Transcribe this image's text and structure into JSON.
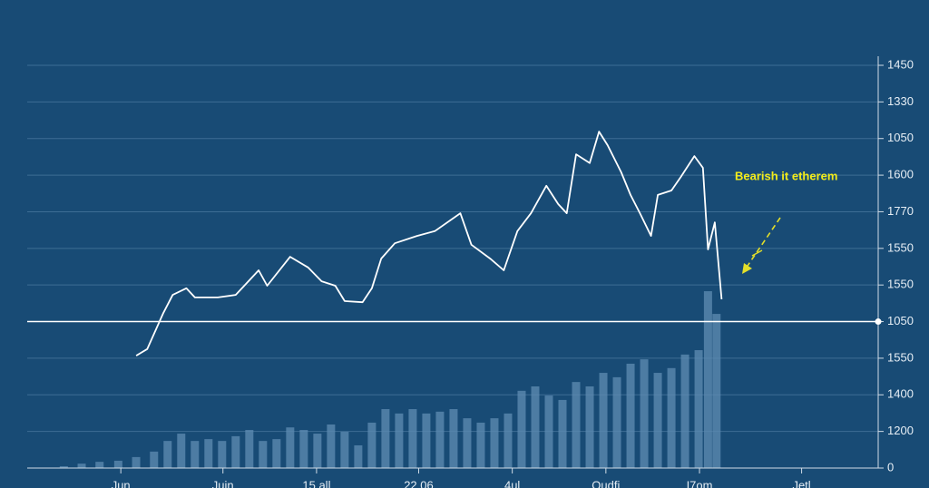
{
  "chart_data": {
    "type": "line",
    "annotation": "Bearish it etherem",
    "xlim": [
      0,
      100
    ],
    "xticks": [
      {
        "value": 11,
        "label": "Jun"
      },
      {
        "value": 23,
        "label": "Jujn"
      },
      {
        "value": 34,
        "label": "15 all"
      },
      {
        "value": 46,
        "label": "22.06"
      },
      {
        "value": 57,
        "label": "4ul"
      },
      {
        "value": 68,
        "label": "Oudfi"
      },
      {
        "value": 79,
        "label": "I7om"
      },
      {
        "value": 91,
        "label": "Jetl"
      }
    ],
    "ylim": [
      0,
      11
    ],
    "yticks": [
      {
        "value": 11,
        "label": "1450"
      },
      {
        "value": 10,
        "label": "1330"
      },
      {
        "value": 9,
        "label": "1050"
      },
      {
        "value": 8,
        "label": "1600"
      },
      {
        "value": 7,
        "label": "1770"
      },
      {
        "value": 6,
        "label": "1550"
      },
      {
        "value": 5,
        "label": "1550"
      },
      {
        "value": 4,
        "label": "1050"
      },
      {
        "value": 3,
        "label": "1550"
      },
      {
        "value": 2,
        "label": "1400"
      },
      {
        "value": 1,
        "label": "1200"
      },
      {
        "value": 0,
        "label": "0"
      }
    ],
    "grid": true,
    "reference_line": 4,
    "series": [
      {
        "type": "line",
        "color": "#ffffff",
        "x": [
          12.8,
          14.1,
          16.0,
          17.1,
          18.7,
          19.7,
          22.4,
          24.5,
          27.2,
          28.2,
          30.9,
          33.0,
          34.6,
          36.2,
          37.3,
          39.4,
          40.5,
          41.6,
          43.2,
          45.8,
          47.9,
          50.9,
          52.2,
          54.4,
          56.0,
          57.6,
          59.2,
          61.0,
          62.4,
          63.4,
          64.5,
          66.1,
          67.2,
          68.2,
          69.8,
          70.9,
          72.0,
          73.3,
          74.1,
          75.7,
          76.8,
          78.4,
          79.4,
          80.0,
          80.8,
          81.6
        ],
        "values": [
          3.07,
          3.25,
          4.24,
          4.73,
          4.91,
          4.66,
          4.66,
          4.73,
          5.4,
          4.98,
          5.77,
          5.48,
          5.1,
          4.98,
          4.56,
          4.53,
          4.91,
          5.72,
          6.14,
          6.34,
          6.47,
          6.96,
          6.1,
          5.72,
          5.4,
          6.47,
          6.96,
          7.71,
          7.21,
          6.96,
          8.57,
          8.33,
          9.19,
          8.82,
          8.08,
          7.46,
          6.96,
          6.34,
          7.46,
          7.58,
          7.95,
          8.52,
          8.2,
          5.97,
          6.71,
          4.61
        ]
      },
      {
        "type": "bar",
        "color": "#5f8cb3",
        "x": [
          4.3,
          6.4,
          8.5,
          10.7,
          12.8,
          14.9,
          16.5,
          18.1,
          19.7,
          21.3,
          22.9,
          24.5,
          26.1,
          27.7,
          29.3,
          30.9,
          32.5,
          34.1,
          35.7,
          37.3,
          38.9,
          40.5,
          42.1,
          43.7,
          45.3,
          46.9,
          48.5,
          50.1,
          51.7,
          53.3,
          54.9,
          56.5,
          58.1,
          59.7,
          61.3,
          62.9,
          64.5,
          66.1,
          67.7,
          69.3,
          70.9,
          72.5,
          74.1,
          75.7,
          77.3,
          78.9,
          80.0,
          81.0
        ],
        "values": [
          0.05,
          0.12,
          0.17,
          0.2,
          0.3,
          0.45,
          0.74,
          0.94,
          0.74,
          0.79,
          0.74,
          0.87,
          1.04,
          0.74,
          0.79,
          1.11,
          1.04,
          0.94,
          1.19,
          0.99,
          0.62,
          1.24,
          1.61,
          1.49,
          1.61,
          1.49,
          1.54,
          1.61,
          1.36,
          1.24,
          1.36,
          1.49,
          2.11,
          2.23,
          1.98,
          1.86,
          2.35,
          2.23,
          2.6,
          2.48,
          2.85,
          2.97,
          2.6,
          2.73,
          3.1,
          3.22,
          4.83,
          4.21
        ]
      }
    ]
  }
}
